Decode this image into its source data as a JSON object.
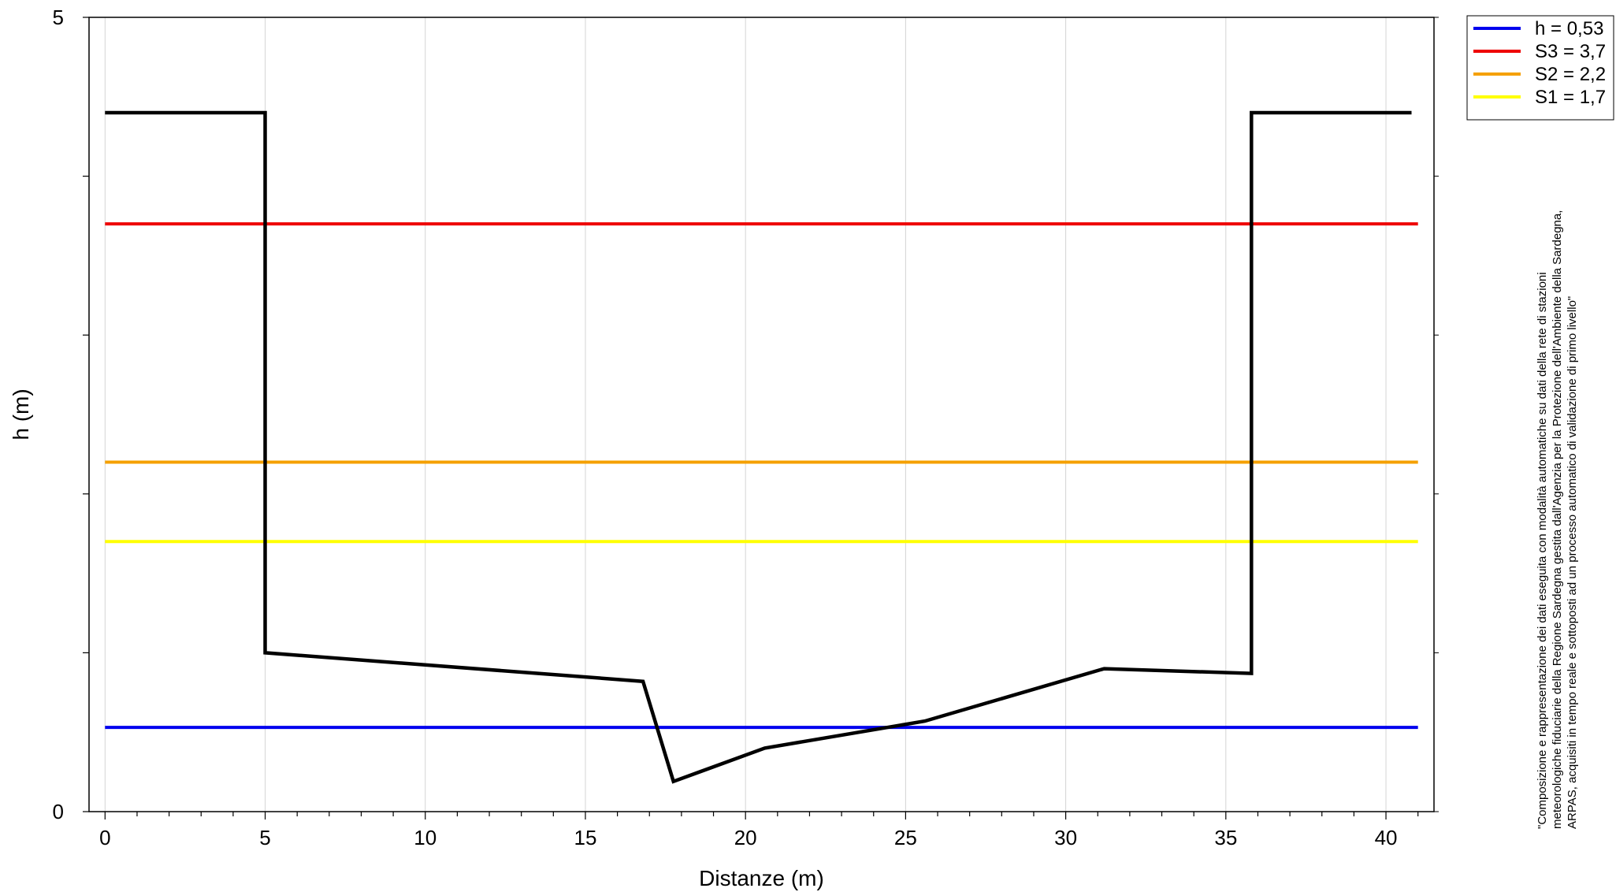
{
  "chart_data": {
    "type": "line",
    "xlabel": "Distanze (m)",
    "ylabel": "h (m)",
    "xlim": [
      -0.5,
      41.5
    ],
    "ylim": [
      0,
      5
    ],
    "x_ticks": [
      0,
      5,
      10,
      15,
      20,
      25,
      30,
      35,
      40
    ],
    "y_ticks": [
      0,
      5
    ],
    "grid": true,
    "legend_position": "outside-top-right",
    "profile": {
      "color": "#000000",
      "points": [
        [
          0,
          4.4
        ],
        [
          5,
          4.4
        ],
        [
          5,
          1.0
        ],
        [
          16.8,
          0.82
        ],
        [
          17.75,
          0.19
        ],
        [
          20.6,
          0.4
        ],
        [
          25.6,
          0.57
        ],
        [
          31.2,
          0.9
        ],
        [
          35.8,
          0.87
        ],
        [
          35.8,
          4.4
        ],
        [
          40.8,
          4.4
        ]
      ]
    },
    "series": [
      {
        "name": "h = 0,53",
        "value": 0.53,
        "color": "#0000ee"
      },
      {
        "name": "S3 = 3,7",
        "value": 3.7,
        "color": "#ee0000"
      },
      {
        "name": "S2 = 2,2",
        "value": 2.2,
        "color": "#f5a000"
      },
      {
        "name": "S1 = 1,7",
        "value": 1.7,
        "color": "#ffff00"
      }
    ],
    "line_x_range": [
      0,
      41
    ]
  },
  "note": {
    "lines": [
      "\"Composizione e rappresentazione dei dati eseguita con modalità automatiche su dati della rete di stazioni",
      "meteorologiche fiduciarie della Regione Sardegna gestita dall'Agenzia per la Protezione dell'Ambiente della Sardegna,",
      "ARPAS, acquisiti in tempo reale e sottoposti ad un processo automatico di validazione di primo livello\""
    ]
  }
}
